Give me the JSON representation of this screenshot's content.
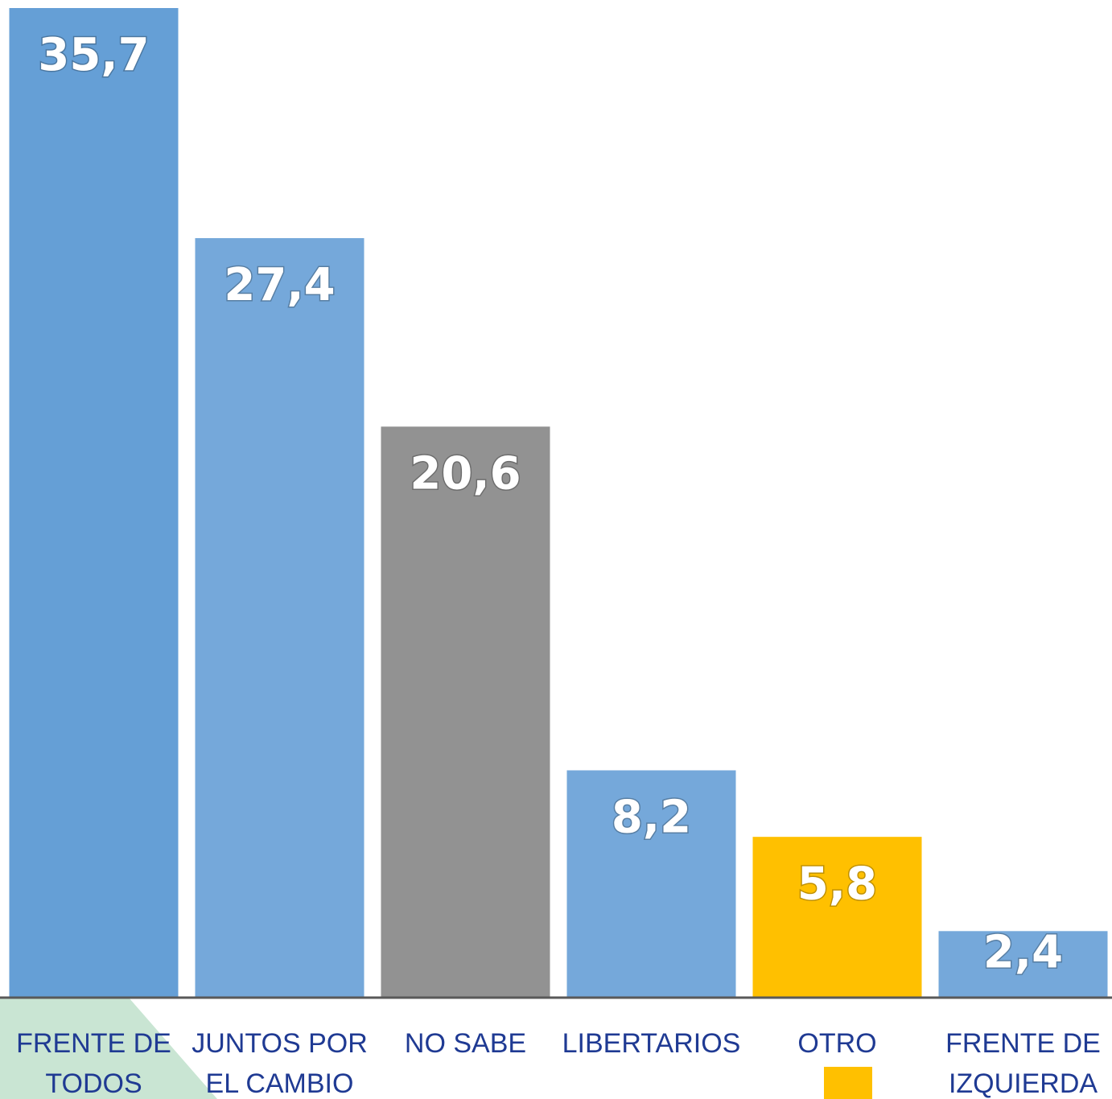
{
  "chart_data": {
    "type": "bar",
    "categories": [
      "FRENTE DE TODOS",
      "JUNTOS POR EL CAMBIO",
      "NO SABE",
      "LIBERTARIOS",
      "OTRO",
      "FRENTE DE IZQUIERDA"
    ],
    "values": [
      35.7,
      27.4,
      20.6,
      8.2,
      5.8,
      2.4
    ],
    "value_labels": [
      "35,7",
      "27,4",
      "20,6",
      "8,2",
      "5,8",
      "2,4"
    ],
    "colors": [
      "#659fd6",
      "#75a8da",
      "#929292",
      "#75a8da",
      "#ffc000",
      "#75a8da"
    ],
    "ylim": [
      0,
      35.7
    ]
  }
}
